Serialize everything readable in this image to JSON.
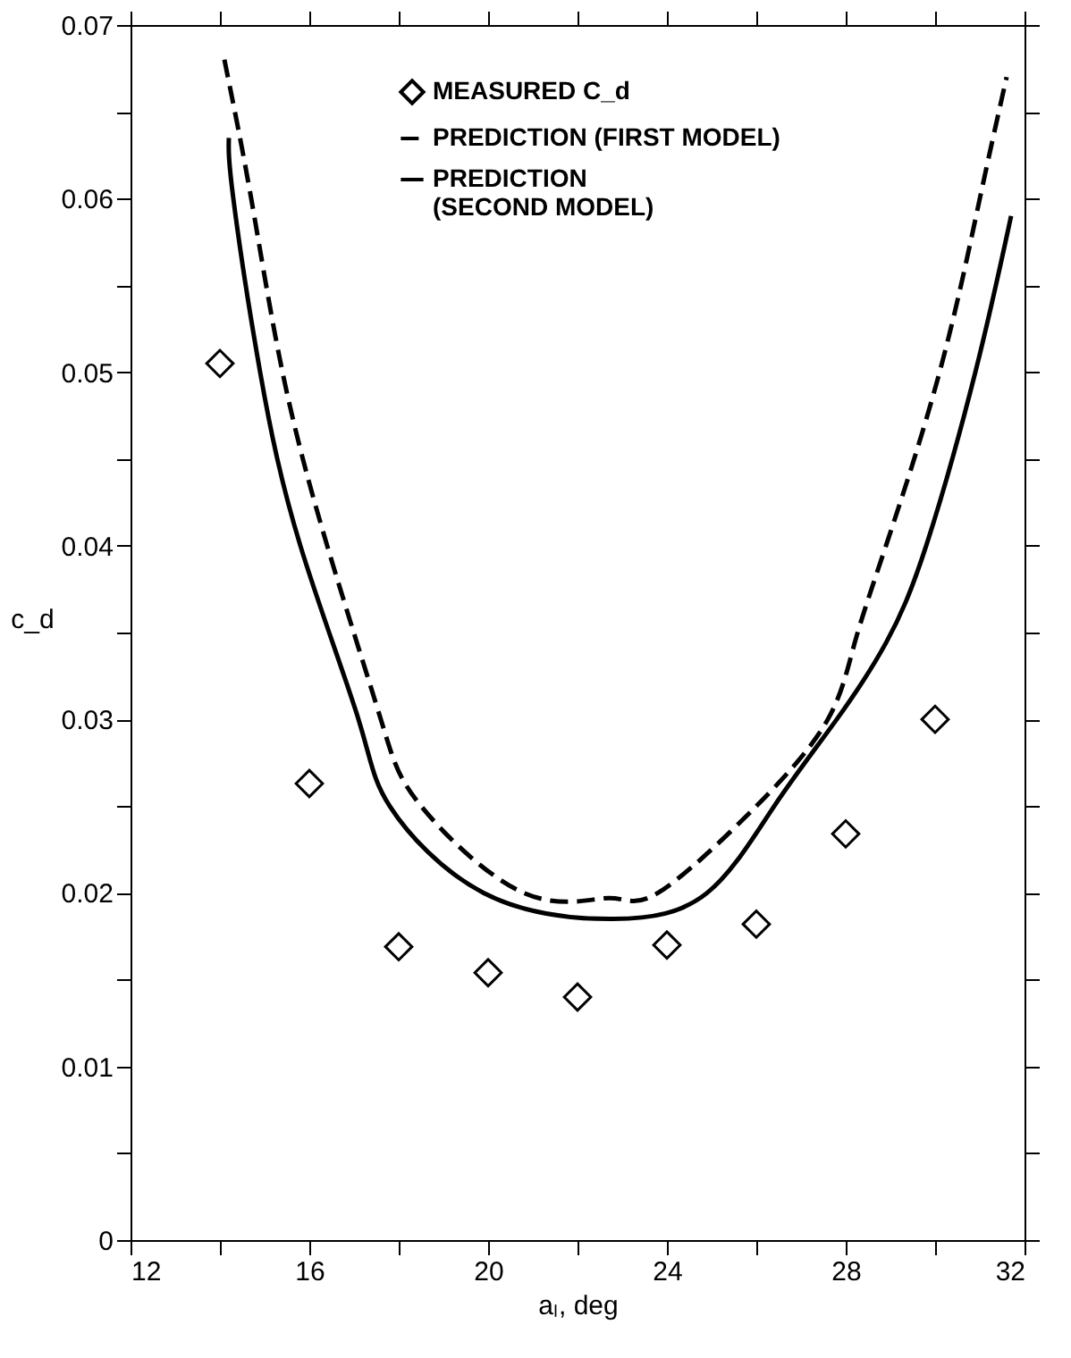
{
  "chart_data": {
    "type": "line",
    "xlabel": "aₗ, deg",
    "ylabel": "c_d",
    "xlim": [
      12,
      32
    ],
    "ylim": [
      0,
      0.07
    ],
    "xticks": [
      12,
      {
        "value": 14,
        "label": null
      },
      16,
      {
        "value": 18,
        "label": null
      },
      20,
      {
        "value": 22,
        "label": null
      },
      24,
      {
        "value": 26,
        "label": null
      },
      28,
      {
        "value": 30,
        "label": null
      },
      32
    ],
    "yticks": [
      0,
      {
        "value": 0.005,
        "label": null
      },
      0.01,
      {
        "value": 0.015,
        "label": null
      },
      0.02,
      {
        "value": 0.025,
        "label": null
      },
      0.03,
      {
        "value": 0.035,
        "label": null
      },
      0.04,
      {
        "value": 0.045,
        "label": null
      },
      0.05,
      {
        "value": 0.055,
        "label": null
      },
      0.06,
      {
        "value": 0.065,
        "label": null
      },
      0.07
    ],
    "grid": false,
    "legend": "top",
    "series": [
      {
        "name": "MEASURED C_d",
        "type": "scatter",
        "marker": "diamond",
        "color": "#000000",
        "x": [
          14,
          16,
          18,
          20,
          22,
          24,
          26,
          28,
          30
        ],
        "values": [
          0.0505,
          0.0263,
          0.0169,
          0.0154,
          0.014,
          0.017,
          0.0182,
          0.0234,
          0.03
        ]
      },
      {
        "name": "PREDICTION (FIRST MODEL)",
        "line_style": "dashed",
        "color": "#000000",
        "x": [
          14.1,
          14.7,
          15.4,
          16.4,
          17.6,
          18.5,
          20.8,
          22.7,
          23.8,
          26.0,
          27.6,
          28.2,
          28.9,
          30.1,
          31.0,
          31.6
        ],
        "values": [
          0.068,
          0.06,
          0.05,
          0.04,
          0.03,
          0.025,
          0.02,
          0.0197,
          0.02,
          0.025,
          0.03,
          0.0344,
          0.04,
          0.05,
          0.06,
          0.067
        ]
      },
      {
        "name": "PREDICTION\n(SECOND MODEL)",
        "line_style": "solid",
        "color": "#000000",
        "x": [
          14.2,
          14.3,
          14.9,
          15.8,
          17.1,
          17.8,
          19.9,
          22.8,
          24.9,
          26.4,
          27.8,
          28.9,
          29.8,
          30.9,
          31.7
        ],
        "values": [
          0.0635,
          0.06,
          0.05,
          0.04,
          0.03,
          0.025,
          0.02,
          0.0185,
          0.02,
          0.025,
          0.03,
          0.0344,
          0.04,
          0.05,
          0.059
        ]
      }
    ]
  }
}
